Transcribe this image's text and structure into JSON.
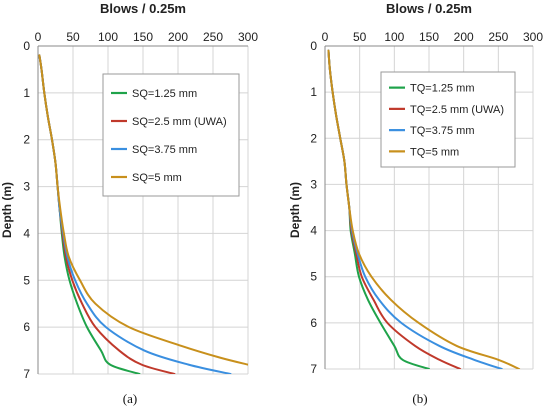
{
  "chart_data": [
    {
      "type": "line",
      "panel_label": "(a)",
      "xlabel": "Blows / 0.25m",
      "ylabel": "Depth (m)",
      "xlim": [
        0,
        300
      ],
      "ylim": [
        0,
        7
      ],
      "x_axis_position": "top",
      "y_reversed": true,
      "x_ticks": [
        "0",
        "50",
        "100",
        "150",
        "200",
        "250",
        "300"
      ],
      "y_ticks": [
        "0",
        "1",
        "2",
        "3",
        "4",
        "5",
        "6",
        "7"
      ],
      "grid": true,
      "legend_position": "top-right",
      "series": [
        {
          "name": "SQ=1.25 mm",
          "color": "#1fa34a",
          "points": [
            [
              2,
              0.2
            ],
            [
              5,
              0.5
            ],
            [
              9,
              1.0
            ],
            [
              14,
              1.5
            ],
            [
              20,
              2.0
            ],
            [
              25,
              2.5
            ],
            [
              28,
              3.0
            ],
            [
              31,
              3.5
            ],
            [
              34,
              4.0
            ],
            [
              38,
              4.5
            ],
            [
              45,
              5.0
            ],
            [
              56,
              5.5
            ],
            [
              70,
              6.0
            ],
            [
              90,
              6.5
            ],
            [
              103,
              6.8
            ],
            [
              145,
              7.0
            ]
          ]
        },
        {
          "name": "SQ=2.5 mm (UWA)",
          "color": "#c0392b",
          "points": [
            [
              2,
              0.2
            ],
            [
              5,
              0.5
            ],
            [
              9,
              1.0
            ],
            [
              14,
              1.5
            ],
            [
              20,
              2.0
            ],
            [
              25,
              2.5
            ],
            [
              28,
              3.0
            ],
            [
              31,
              3.5
            ],
            [
              35,
              4.0
            ],
            [
              40,
              4.5
            ],
            [
              49,
              5.0
            ],
            [
              63,
              5.5
            ],
            [
              82,
              6.0
            ],
            [
              116,
              6.5
            ],
            [
              148,
              6.8
            ],
            [
              195,
              7.0
            ]
          ]
        },
        {
          "name": "SQ=3.75 mm",
          "color": "#3a8fe0",
          "points": [
            [
              2,
              0.2
            ],
            [
              5,
              0.5
            ],
            [
              9,
              1.0
            ],
            [
              14,
              1.5
            ],
            [
              20,
              2.0
            ],
            [
              25,
              2.5
            ],
            [
              28,
              3.0
            ],
            [
              31,
              3.5
            ],
            [
              36,
              4.0
            ],
            [
              42,
              4.5
            ],
            [
              53,
              5.0
            ],
            [
              70,
              5.5
            ],
            [
              97,
              6.0
            ],
            [
              152,
              6.5
            ],
            [
              215,
              6.8
            ],
            [
              275,
              7.0
            ]
          ]
        },
        {
          "name": "SQ=5 mm",
          "color": "#c8901c",
          "points": [
            [
              2,
              0.2
            ],
            [
              5,
              0.5
            ],
            [
              9,
              1.0
            ],
            [
              14,
              1.5
            ],
            [
              20,
              2.0
            ],
            [
              25,
              2.5
            ],
            [
              28,
              3.0
            ],
            [
              32,
              3.5
            ],
            [
              37,
              4.0
            ],
            [
              44,
              4.5
            ],
            [
              60,
              5.0
            ],
            [
              82,
              5.5
            ],
            [
              130,
              6.0
            ],
            [
              205,
              6.4
            ],
            [
              260,
              6.65
            ],
            [
              300,
              6.8
            ]
          ]
        }
      ]
    },
    {
      "type": "line",
      "panel_label": "(b)",
      "xlabel": "Blows / 0.25m",
      "ylabel": "Depth (m)",
      "xlim": [
        0,
        300
      ],
      "ylim": [
        0,
        7
      ],
      "x_axis_position": "top",
      "y_reversed": true,
      "x_ticks": [
        "0",
        "50",
        "100",
        "150",
        "200",
        "250",
        "300"
      ],
      "y_ticks": [
        "0",
        "1",
        "2",
        "3",
        "4",
        "5",
        "6",
        "7"
      ],
      "grid": true,
      "legend_position": "top-right",
      "series": [
        {
          "name": "TQ=1.25 mm",
          "color": "#1fa34a",
          "points": [
            [
              5,
              0.1
            ],
            [
              7,
              0.5
            ],
            [
              11,
              1.0
            ],
            [
              16,
              1.5
            ],
            [
              22,
              2.0
            ],
            [
              28,
              2.5
            ],
            [
              31,
              3.0
            ],
            [
              35,
              3.5
            ],
            [
              37,
              4.0
            ],
            [
              43,
              4.5
            ],
            [
              49,
              5.0
            ],
            [
              62,
              5.5
            ],
            [
              80,
              6.0
            ],
            [
              100,
              6.5
            ],
            [
              112,
              6.8
            ],
            [
              150,
              7.0
            ]
          ]
        },
        {
          "name": "TQ=2.5 mm (UWA)",
          "color": "#c0392b",
          "points": [
            [
              5,
              0.1
            ],
            [
              7,
              0.5
            ],
            [
              11,
              1.0
            ],
            [
              16,
              1.5
            ],
            [
              22,
              2.0
            ],
            [
              28,
              2.5
            ],
            [
              31,
              3.0
            ],
            [
              35,
              3.5
            ],
            [
              38,
              4.0
            ],
            [
              45,
              4.5
            ],
            [
              53,
              5.0
            ],
            [
              70,
              5.5
            ],
            [
              90,
              6.0
            ],
            [
              130,
              6.5
            ],
            [
              165,
              6.8
            ],
            [
              195,
              7.0
            ]
          ]
        },
        {
          "name": "TQ=3.75 mm",
          "color": "#3a8fe0",
          "points": [
            [
              5,
              0.1
            ],
            [
              7,
              0.5
            ],
            [
              11,
              1.0
            ],
            [
              16,
              1.5
            ],
            [
              22,
              2.0
            ],
            [
              28,
              2.5
            ],
            [
              31,
              3.0
            ],
            [
              35,
              3.5
            ],
            [
              39,
              4.0
            ],
            [
              47,
              4.5
            ],
            [
              58,
              5.0
            ],
            [
              78,
              5.5
            ],
            [
              110,
              6.0
            ],
            [
              165,
              6.5
            ],
            [
              215,
              6.8
            ],
            [
              255,
              7.0
            ]
          ]
        },
        {
          "name": "TQ=5 mm",
          "color": "#c8901c",
          "points": [
            [
              5,
              0.1
            ],
            [
              7,
              0.5
            ],
            [
              11,
              1.0
            ],
            [
              16,
              1.5
            ],
            [
              22,
              2.0
            ],
            [
              28,
              2.5
            ],
            [
              31,
              3.0
            ],
            [
              35,
              3.5
            ],
            [
              40,
              4.0
            ],
            [
              49,
              4.5
            ],
            [
              67,
              5.0
            ],
            [
              95,
              5.5
            ],
            [
              135,
              6.0
            ],
            [
              190,
              6.5
            ],
            [
              250,
              6.8
            ],
            [
              280,
              7.0
            ]
          ]
        }
      ]
    }
  ]
}
